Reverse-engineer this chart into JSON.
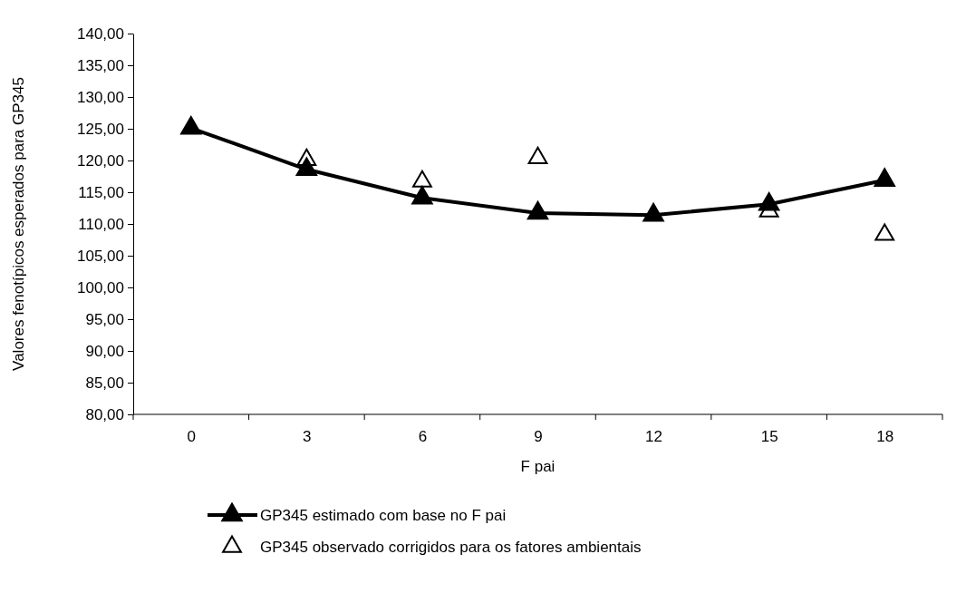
{
  "chart_data": {
    "type": "line",
    "xlabel": "F pai",
    "ylabel": "Valores fenotípicos esperados para GP345",
    "categories": [
      "0",
      "3",
      "6",
      "9",
      "12",
      "15",
      "18"
    ],
    "ylim": [
      80,
      140
    ],
    "yticks": [
      {
        "value": 80,
        "label": "80,00"
      },
      {
        "value": 85,
        "label": "85,00"
      },
      {
        "value": 90,
        "label": "90,00"
      },
      {
        "value": 95,
        "label": "95,00"
      },
      {
        "value": 100,
        "label": "100,00"
      },
      {
        "value": 105,
        "label": "105,00"
      },
      {
        "value": 110,
        "label": "110,00"
      },
      {
        "value": 115,
        "label": "115,00"
      },
      {
        "value": 120,
        "label": "120,00"
      },
      {
        "value": 125,
        "label": "125,00"
      },
      {
        "value": 130,
        "label": "130,00"
      },
      {
        "value": 135,
        "label": "135,00"
      },
      {
        "value": 140,
        "label": "140,00"
      }
    ],
    "grid": false,
    "legend": "bottom",
    "marker": "triangle",
    "line_style": "solid",
    "series": [
      {
        "name": "GP345 estimado com base no F pai",
        "type": "line",
        "color": "#000000",
        "values": [
          125.1,
          118.6,
          114.1,
          111.7,
          111.4,
          113.1,
          116.9
        ]
      },
      {
        "name": "GP345 observado corrigidos para os fatores ambientais",
        "type": "scatter",
        "color": "#000000",
        "values": [
          null,
          120.1,
          116.7,
          120.4,
          null,
          112.0,
          108.3
        ]
      }
    ]
  }
}
